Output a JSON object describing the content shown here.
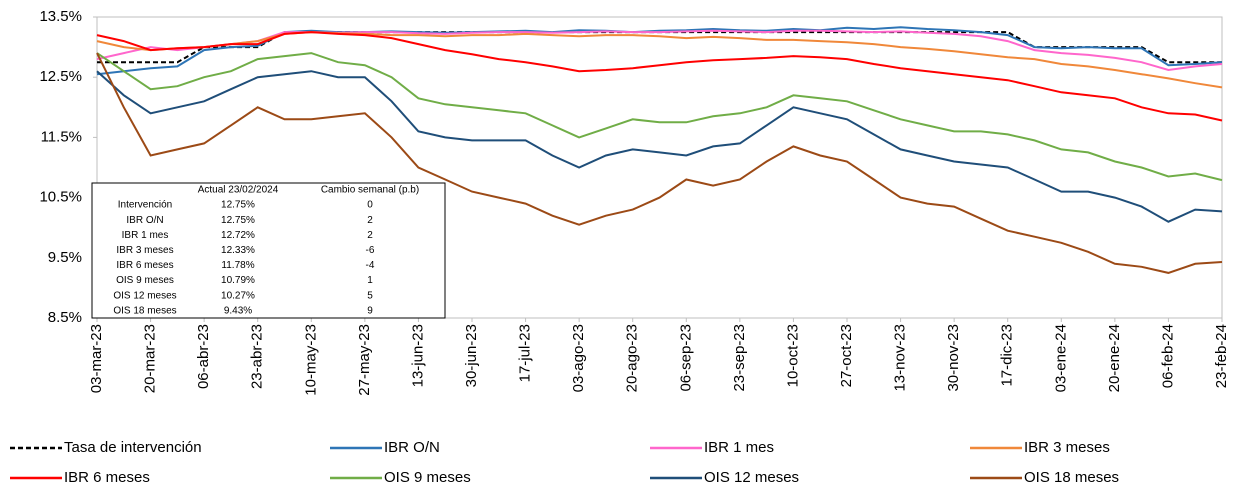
{
  "chart_data": {
    "type": "line",
    "categories": [
      "03-mar-23",
      null,
      "20-mar-23",
      null,
      "06-abr-23",
      null,
      "23-abr-23",
      null,
      "10-may-23",
      null,
      "27-may-23",
      null,
      "13-jun-23",
      null,
      "30-jun-23",
      null,
      "17-jul-23",
      null,
      "03-ago-23",
      null,
      "20-ago-23",
      null,
      "06-sep-23",
      null,
      "23-sep-23",
      null,
      "10-oct-23",
      null,
      "27-oct-23",
      null,
      "13-nov-23",
      null,
      "30-nov-23",
      null,
      "17-dic-23",
      null,
      "03-ene-24",
      null,
      "20-ene-24",
      null,
      "06-feb-24",
      null,
      "23-feb-24"
    ],
    "ylim": [
      8.5,
      13.5
    ],
    "yticks": [
      {
        "value": 8.5,
        "label": "8.5%"
      },
      {
        "value": 9.5,
        "label": "9.5%"
      },
      {
        "value": 10.5,
        "label": "10.5%"
      },
      {
        "value": 11.5,
        "label": "11.5%"
      },
      {
        "value": 12.5,
        "label": "12.5%"
      },
      {
        "value": 13.5,
        "label": "13.5%"
      }
    ],
    "series": [
      {
        "name": "Tasa de intervención",
        "color": "#000000",
        "dashed": true,
        "values": [
          12.75,
          12.75,
          12.75,
          12.75,
          13,
          13,
          13,
          13.25,
          13.25,
          13.25,
          13.25,
          13.25,
          13.25,
          13.25,
          13.25,
          13.25,
          13.25,
          13.25,
          13.25,
          13.25,
          13.25,
          13.25,
          13.25,
          13.25,
          13.25,
          13.25,
          13.25,
          13.25,
          13.25,
          13.25,
          13.25,
          13.25,
          13.25,
          13.25,
          13.25,
          13,
          13,
          13,
          13,
          13,
          12.75,
          12.75,
          12.75
        ]
      },
      {
        "name": "IBR O/N",
        "color": "#2e75b6",
        "values": [
          12.55,
          12.6,
          12.65,
          12.68,
          12.95,
          13.0,
          13.02,
          13.25,
          13.27,
          13.25,
          13.25,
          13.26,
          13.25,
          13.24,
          13.25,
          13.26,
          13.27,
          13.25,
          13.28,
          13.27,
          13.25,
          13.27,
          13.28,
          13.3,
          13.28,
          13.27,
          13.3,
          13.28,
          13.32,
          13.3,
          13.33,
          13.3,
          13.28,
          13.25,
          13.2,
          13.0,
          12.98,
          13.0,
          12.98,
          12.98,
          12.7,
          12.72,
          12.75
        ]
      },
      {
        "name": "IBR 1 mes",
        "color": "#ff66cc",
        "values": [
          12.8,
          12.9,
          13.0,
          12.95,
          13.0,
          13.05,
          13.1,
          13.25,
          13.25,
          13.24,
          13.25,
          13.25,
          13.23,
          13.22,
          13.24,
          13.25,
          13.25,
          13.24,
          13.25,
          13.26,
          13.25,
          13.25,
          13.26,
          13.27,
          13.26,
          13.25,
          13.27,
          13.27,
          13.26,
          13.25,
          13.26,
          13.24,
          13.22,
          13.18,
          13.1,
          12.95,
          12.9,
          12.87,
          12.82,
          12.75,
          12.62,
          12.68,
          12.72
        ]
      },
      {
        "name": "IBR 3 meses",
        "color": "#f0883a",
        "values": [
          13.1,
          13.0,
          12.95,
          12.98,
          13.0,
          13.05,
          13.1,
          13.22,
          13.25,
          13.23,
          13.22,
          13.2,
          13.2,
          13.18,
          13.2,
          13.2,
          13.22,
          13.2,
          13.18,
          13.2,
          13.2,
          13.18,
          13.15,
          13.17,
          13.15,
          13.12,
          13.12,
          13.1,
          13.08,
          13.05,
          13.0,
          12.97,
          12.93,
          12.88,
          12.83,
          12.8,
          12.72,
          12.68,
          12.62,
          12.55,
          12.48,
          12.4,
          12.33
        ]
      },
      {
        "name": "IBR 6 meses",
        "color": "#ff0000",
        "values": [
          13.2,
          13.1,
          12.95,
          12.98,
          13.0,
          13.05,
          13.05,
          13.22,
          13.25,
          13.22,
          13.2,
          13.15,
          13.05,
          12.95,
          12.88,
          12.8,
          12.75,
          12.68,
          12.6,
          12.62,
          12.65,
          12.7,
          12.75,
          12.78,
          12.8,
          12.82,
          12.85,
          12.83,
          12.8,
          12.72,
          12.65,
          12.6,
          12.55,
          12.5,
          12.45,
          12.35,
          12.25,
          12.2,
          12.15,
          12.0,
          11.9,
          11.88,
          11.78
        ]
      },
      {
        "name": "OIS 9 meses",
        "color": "#70ad47",
        "values": [
          12.9,
          12.6,
          12.3,
          12.35,
          12.5,
          12.6,
          12.8,
          12.85,
          12.9,
          12.75,
          12.7,
          12.5,
          12.15,
          12.05,
          12.0,
          11.95,
          11.9,
          11.7,
          11.5,
          11.65,
          11.8,
          11.75,
          11.75,
          11.85,
          11.9,
          12.0,
          12.2,
          12.15,
          12.1,
          11.95,
          11.8,
          11.7,
          11.6,
          11.6,
          11.55,
          11.45,
          11.3,
          11.25,
          11.1,
          11.0,
          10.85,
          10.9,
          10.79
        ]
      },
      {
        "name": "OIS 12 meses",
        "color": "#1f4e79",
        "values": [
          12.6,
          12.2,
          11.9,
          12.0,
          12.1,
          12.3,
          12.5,
          12.55,
          12.6,
          12.5,
          12.5,
          12.1,
          11.6,
          11.5,
          11.45,
          11.45,
          11.45,
          11.2,
          11.0,
          11.2,
          11.3,
          11.25,
          11.2,
          11.35,
          11.4,
          11.7,
          12.0,
          11.9,
          11.8,
          11.55,
          11.3,
          11.2,
          11.1,
          11.05,
          11.0,
          10.8,
          10.6,
          10.6,
          10.5,
          10.35,
          10.1,
          10.3,
          10.27
        ]
      },
      {
        "name": "OIS 18 meses",
        "color": "#9c4a16",
        "values": [
          12.9,
          12.0,
          11.2,
          11.3,
          11.4,
          11.7,
          12.0,
          11.8,
          11.8,
          11.85,
          11.9,
          11.5,
          11.0,
          10.8,
          10.6,
          10.5,
          10.4,
          10.2,
          10.05,
          10.2,
          10.3,
          10.5,
          10.8,
          10.7,
          10.8,
          11.1,
          11.35,
          11.2,
          11.1,
          10.8,
          10.5,
          10.4,
          10.35,
          10.15,
          9.95,
          9.85,
          9.75,
          9.6,
          9.4,
          9.35,
          9.25,
          9.4,
          9.43
        ]
      }
    ],
    "table": {
      "columns": [
        "Actual 23/02/2024",
        "Cambio semanal (p.b)"
      ],
      "rows": [
        [
          "Intervención",
          "12.75%",
          "0"
        ],
        [
          "IBR O/N",
          "12.75%",
          "2"
        ],
        [
          "IBR 1 mes",
          "12.72%",
          "2"
        ],
        [
          "IBR 3 meses",
          "12.33%",
          "-6"
        ],
        [
          "IBR 6 meses",
          "11.78%",
          "-4"
        ],
        [
          "OIS 9 meses",
          "10.79%",
          "1"
        ],
        [
          "OIS 12 meses",
          "10.27%",
          "5"
        ],
        [
          "OIS 18 meses",
          "9.43%",
          "9"
        ]
      ]
    }
  }
}
